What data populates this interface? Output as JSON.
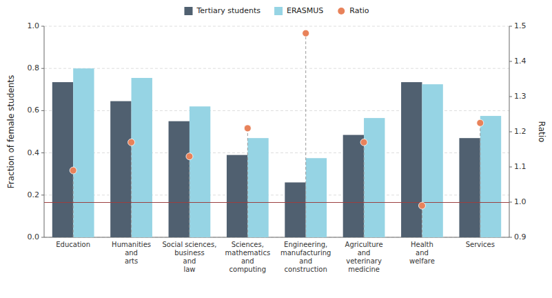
{
  "chart_data": {
    "type": "bar",
    "categories": [
      "Education",
      "Humanities\nand\narts",
      "Social sciences,\nbusiness\nand\nlaw",
      "Sciences,\nmathematics\nand\ncomputing",
      "Engineering,\nmanufacturing\nand\nconstruction",
      "Agriculture\nand\nveterinary\nmedicine",
      "Health\nand\nwelfare",
      "Services"
    ],
    "series": [
      {
        "name": "Tertiary students",
        "type": "bar",
        "color": "#506070",
        "values": [
          0.735,
          0.645,
          0.55,
          0.39,
          0.26,
          0.485,
          0.735,
          0.47
        ]
      },
      {
        "name": "ERASMUS",
        "type": "bar",
        "color": "#96d4e4",
        "values": [
          0.8,
          0.755,
          0.62,
          0.47,
          0.375,
          0.565,
          0.725,
          0.575
        ]
      },
      {
        "name": "Ratio",
        "type": "scatter",
        "marker": "circle",
        "color": "#e8825a",
        "axis": "y2",
        "values": [
          1.09,
          1.17,
          1.13,
          1.21,
          1.48,
          1.17,
          0.99,
          1.225
        ]
      }
    ],
    "y_label": "Fraction of female students",
    "y2_label": "Ratio",
    "ylim": [
      0.0,
      1.0
    ],
    "yticks": [
      {
        "value": 0.0,
        "label": "0.0"
      },
      0.2,
      0.4,
      0.6,
      0.8,
      {
        "value": 1.0,
        "label": "1.0"
      }
    ],
    "y2lim": [
      0.9,
      1.5
    ],
    "y2ticks": [
      0.9,
      {
        "value": 1.0,
        "label": "1.0"
      },
      1.1,
      1.2,
      1.3,
      1.4,
      1.5
    ],
    "reference_line": {
      "value": 0.165,
      "color": "#9b4040"
    },
    "grid": true,
    "legend": "top"
  }
}
